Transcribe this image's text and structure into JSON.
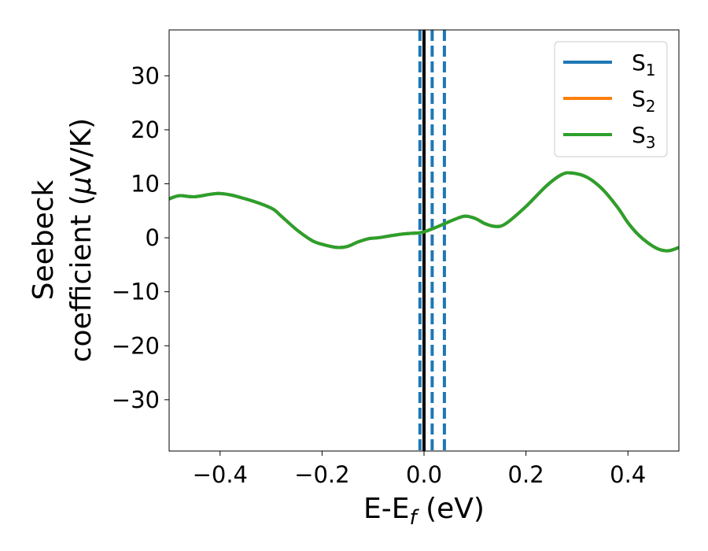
{
  "chart_data": {
    "type": "line",
    "title": "",
    "xlabel": "E-E",
    "xlabel_sub": "f",
    "xlabel_unit": " (eV)",
    "ylabel_line1": "Seebeck",
    "ylabel_line2": "coefficient  (",
    "ylabel_mu": "μ",
    "ylabel_unit": "V/K)",
    "xlim": [
      -0.5,
      0.5
    ],
    "ylim": [
      -39.5,
      38.5
    ],
    "xticks": [
      -0.4,
      -0.2,
      0.0,
      0.2,
      0.4
    ],
    "xtick_labels": [
      "−0.4",
      "−0.2",
      "0.0",
      "0.2",
      "0.4"
    ],
    "yticks": [
      -30,
      -20,
      -10,
      0,
      10,
      20,
      30
    ],
    "ytick_labels": [
      "−30",
      "−20",
      "−10",
      "0",
      "10",
      "20",
      "30"
    ],
    "grid": false,
    "legend_position": "top-right",
    "series": [
      {
        "name": "S",
        "sub": "1",
        "color": "#1f77b4",
        "x": [
          -0.5,
          -0.48,
          -0.45,
          -0.4,
          -0.35,
          -0.3,
          -0.28,
          -0.25,
          -0.22,
          -0.2,
          -0.17,
          -0.15,
          -0.13,
          -0.11,
          -0.09,
          -0.07,
          -0.05,
          -0.03,
          -0.01,
          0.0,
          0.02,
          0.04,
          0.06,
          0.08,
          0.1,
          0.12,
          0.14,
          0.16,
          0.2,
          0.24,
          0.27,
          0.29,
          0.32,
          0.35,
          0.38,
          0.4,
          0.42,
          0.44,
          0.46,
          0.48,
          0.5
        ],
        "y": [
          7.2,
          7.8,
          7.6,
          8.2,
          7.2,
          5.5,
          4.0,
          1.5,
          -0.5,
          -1.2,
          -1.8,
          -1.6,
          -0.8,
          -0.2,
          0.0,
          0.3,
          0.6,
          0.8,
          0.9,
          1.1,
          1.8,
          2.6,
          3.4,
          4.0,
          3.6,
          2.6,
          2.1,
          2.6,
          5.8,
          9.6,
          11.7,
          12.0,
          11.2,
          9.0,
          5.6,
          2.8,
          0.6,
          -1.0,
          -2.1,
          -2.4,
          -1.8
        ]
      },
      {
        "name": "S",
        "sub": "2",
        "color": "#ff7f0e",
        "x": [
          -0.5,
          -0.48,
          -0.45,
          -0.4,
          -0.35,
          -0.3,
          -0.28,
          -0.25,
          -0.22,
          -0.2,
          -0.17,
          -0.15,
          -0.13,
          -0.11,
          -0.09,
          -0.07,
          -0.05,
          -0.03,
          -0.01,
          0.0,
          0.02,
          0.04,
          0.06,
          0.08,
          0.1,
          0.12,
          0.14,
          0.16,
          0.2,
          0.24,
          0.27,
          0.29,
          0.32,
          0.35,
          0.38,
          0.4,
          0.42,
          0.44,
          0.46,
          0.48,
          0.5
        ],
        "y": [
          7.2,
          7.8,
          7.6,
          8.2,
          7.2,
          5.5,
          4.0,
          1.5,
          -0.5,
          -1.2,
          -1.8,
          -1.6,
          -0.8,
          -0.2,
          0.0,
          0.3,
          0.6,
          0.8,
          0.9,
          1.1,
          1.8,
          2.6,
          3.4,
          4.0,
          3.6,
          2.6,
          2.1,
          2.6,
          5.8,
          9.6,
          11.7,
          12.0,
          11.2,
          9.0,
          5.6,
          2.8,
          0.6,
          -1.0,
          -2.1,
          -2.4,
          -1.8
        ]
      },
      {
        "name": "S",
        "sub": "3",
        "color": "#2ca02c",
        "x": [
          -0.5,
          -0.48,
          -0.45,
          -0.4,
          -0.35,
          -0.3,
          -0.28,
          -0.25,
          -0.22,
          -0.2,
          -0.17,
          -0.15,
          -0.13,
          -0.11,
          -0.09,
          -0.07,
          -0.05,
          -0.03,
          -0.01,
          0.0,
          0.02,
          0.04,
          0.06,
          0.08,
          0.1,
          0.12,
          0.14,
          0.16,
          0.2,
          0.24,
          0.27,
          0.29,
          0.32,
          0.35,
          0.38,
          0.4,
          0.42,
          0.44,
          0.46,
          0.48,
          0.5
        ],
        "y": [
          7.2,
          7.8,
          7.6,
          8.2,
          7.2,
          5.5,
          4.0,
          1.5,
          -0.5,
          -1.2,
          -1.8,
          -1.6,
          -0.8,
          -0.2,
          0.0,
          0.3,
          0.6,
          0.8,
          0.9,
          1.1,
          1.8,
          2.6,
          3.4,
          4.0,
          3.6,
          2.6,
          2.1,
          2.6,
          5.8,
          9.6,
          11.7,
          12.0,
          11.2,
          9.0,
          5.6,
          2.8,
          0.6,
          -1.0,
          -2.1,
          -2.4,
          -1.8
        ]
      }
    ],
    "vlines": [
      {
        "x": 0.0,
        "style": "solid",
        "color": "#000000"
      },
      {
        "x": -0.008,
        "style": "dashed",
        "color": "#1f77b4"
      },
      {
        "x": 0.016,
        "style": "dashed",
        "color": "#1f77b4"
      },
      {
        "x": 0.04,
        "style": "dashed",
        "color": "#1f77b4"
      }
    ]
  }
}
